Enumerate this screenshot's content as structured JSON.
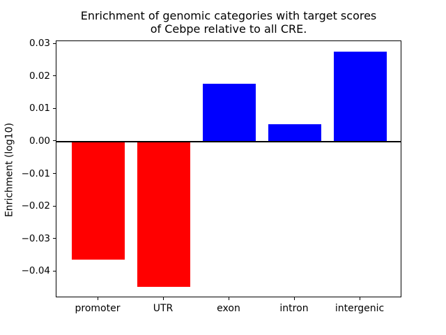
{
  "figure": {
    "title_lines": [
      "Enrichment of genomic categories with target scores",
      "of Cebpe relative to all CRE."
    ],
    "background_color": "#ffffff"
  },
  "chart_data": {
    "type": "bar",
    "title": "Enrichment of genomic categories with target scores of Cebpe relative to all CRE.",
    "xlabel": "",
    "ylabel": "Enrichment (log10)",
    "categories": [
      "promoter",
      "UTR",
      "exon",
      "intron",
      "intergenic"
    ],
    "values": [
      -0.0362,
      -0.0446,
      0.0179,
      0.0054,
      0.0277
    ],
    "bar_colors": [
      "#ff0000",
      "#ff0000",
      "#0000ff",
      "#0000ff",
      "#0000ff"
    ],
    "negative_color": "#ff0000",
    "positive_color": "#0000ff",
    "ylim": [
      -0.0481,
      0.0309
    ],
    "yticks": [
      0.03,
      0.02,
      0.01,
      0.0,
      -0.01,
      -0.02,
      -0.03,
      -0.04
    ],
    "ytick_labels": [
      "0.03",
      "0.02",
      "0.01",
      "0.00",
      "−0.01",
      "−0.02",
      "−0.03",
      "−0.04"
    ],
    "zero_line": {
      "value": 0,
      "color": "#000000"
    },
    "grid": false,
    "legend": null,
    "axis_color": "#000000"
  }
}
